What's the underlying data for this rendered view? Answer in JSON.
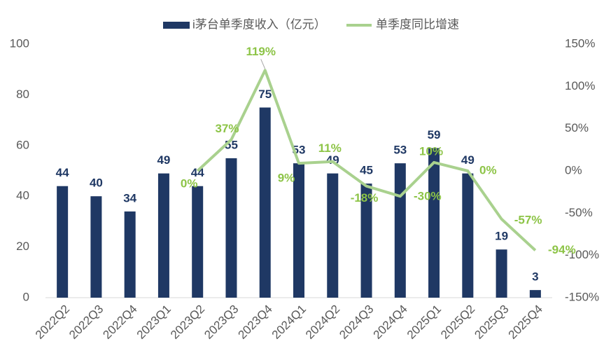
{
  "chart_data": {
    "type": "bar-line",
    "categories": [
      "2022Q2",
      "2022Q3",
      "2022Q4",
      "2023Q1",
      "2023Q2",
      "2023Q3",
      "2023Q4",
      "2024Q1",
      "2024Q2",
      "2024Q3",
      "2024Q4",
      "2025Q1",
      "2025Q2",
      "2025Q3",
      "2025Q4"
    ],
    "series": [
      {
        "name": "i茅台单季度收入（亿元）",
        "type": "bar",
        "color": "#1f3864",
        "values": [
          44,
          40,
          34,
          49,
          44,
          55,
          75,
          53,
          49,
          45,
          53,
          59,
          49,
          19,
          3
        ]
      },
      {
        "name": "单季度同比增速",
        "type": "line",
        "axis": "y2",
        "color": "#a9d18e",
        "label_color": "#8dc447",
        "values": [
          null,
          null,
          null,
          null,
          0,
          37,
          119,
          9,
          11,
          -18,
          -30,
          10,
          0,
          -57,
          -94
        ],
        "value_labels": [
          null,
          null,
          null,
          null,
          "0%",
          "37%",
          "119%",
          "9%",
          "11%",
          "-18%",
          "-30%",
          "10%",
          "0%",
          "-57%",
          "-94%"
        ]
      }
    ],
    "ylim": [
      0,
      100
    ],
    "yticks": [
      0,
      20,
      40,
      60,
      80,
      100
    ],
    "y2lim": [
      -150,
      150
    ],
    "y2ticks": [
      {
        "value": -150,
        "label": "-150%"
      },
      {
        "value": -100,
        "label": "-100%"
      },
      {
        "value": -50,
        "label": "-50%"
      },
      {
        "value": 0,
        "label": "0%"
      },
      {
        "value": 50,
        "label": "50%"
      },
      {
        "value": 100,
        "label": "100%"
      },
      {
        "value": 150,
        "label": "150%"
      }
    ],
    "legend": "top"
  }
}
